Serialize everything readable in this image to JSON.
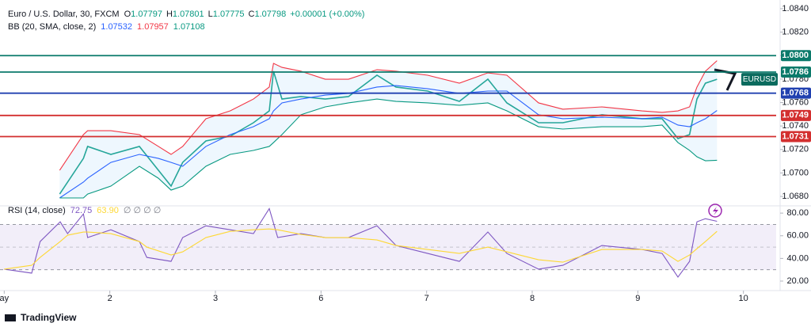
{
  "chart_data": [
    {
      "type": "line",
      "title": "Euro / U.S. Dollar, 30, FXCM",
      "ohlc": [
        {
          "label": "O",
          "value": 1.07797
        },
        {
          "label": "H",
          "value": 1.07801
        },
        {
          "label": "L",
          "value": 1.07775
        },
        {
          "label": "C",
          "value": 1.07798
        }
      ],
      "change": "+0.00001 (+0.00%)",
      "indicator": "BB (20, SMA, close, 2)",
      "indicator_values": [
        1.07532,
        1.07957,
        1.07108
      ],
      "tag": "EURUSD",
      "x": [
        0.525,
        0.75,
        0.79,
        1.01,
        1.28,
        1.46,
        1.58,
        1.69,
        1.91,
        2.14,
        2.36,
        2.51,
        2.55,
        2.63,
        2.81,
        3.04,
        3.26,
        3.53,
        3.71,
        4.01,
        4.31,
        4.58,
        4.76,
        5.06,
        5.29,
        5.66,
        6.04,
        6.23,
        6.38,
        6.49,
        6.56,
        6.64,
        6.75
      ],
      "series": [
        {
          "color": "#26a69a",
          "values": [
            1.0682,
            1.07124,
            1.07226,
            1.07158,
            1.07226,
            1.07023,
            1.06888,
            1.0709,
            1.07273,
            1.07313,
            1.07428,
            1.07529,
            1.07867,
            1.0763,
            1.07651,
            1.0763,
            1.07651,
            1.07833,
            1.07732,
            1.07698,
            1.0761,
            1.07799,
            1.07597,
            1.07428,
            1.07428,
            1.07496,
            1.07462,
            1.07462,
            1.07293,
            1.07327,
            1.0763,
            1.07765,
            1.07798
          ]
        },
        {
          "color": "#f23645",
          "values": [
            1.07023,
            1.07327,
            1.0736,
            1.0736,
            1.07327,
            1.07226,
            1.07158,
            1.07226,
            1.07462,
            1.07529,
            1.0763,
            1.07732,
            1.07934,
            1.079,
            1.07867,
            1.07799,
            1.07799,
            1.0788,
            1.07867,
            1.07833,
            1.07765,
            1.07853,
            1.07833,
            1.07597,
            1.07543,
            1.07563,
            1.07529,
            1.07516,
            1.07529,
            1.07563,
            1.07732,
            1.07867,
            1.07957
          ]
        },
        {
          "color": "#2962ff",
          "values": [
            1.06787,
            1.06922,
            1.06955,
            1.0709,
            1.07158,
            1.07124,
            1.0709,
            1.07057,
            1.07226,
            1.07327,
            1.07394,
            1.07462,
            1.07529,
            1.07597,
            1.0763,
            1.07664,
            1.07678,
            1.07732,
            1.07745,
            1.07718,
            1.07678,
            1.07698,
            1.07698,
            1.07496,
            1.07462,
            1.07475,
            1.07462,
            1.07475,
            1.07408,
            1.07394,
            1.07428,
            1.07462,
            1.07532
          ]
        },
        {
          "color": "#089981",
          "values": [
            1.06787,
            1.06787,
            1.0682,
            1.06888,
            1.07057,
            1.06955,
            1.06854,
            1.06888,
            1.07057,
            1.07158,
            1.07192,
            1.07226,
            1.07259,
            1.07327,
            1.07496,
            1.07563,
            1.07597,
            1.0763,
            1.0761,
            1.07597,
            1.07577,
            1.07597,
            1.07529,
            1.07394,
            1.07374,
            1.07394,
            1.07394,
            1.07408,
            1.07259,
            1.07192,
            1.07138,
            1.07104,
            1.07108
          ]
        }
      ],
      "band_color": "#2196f3",
      "levels": [
        {
          "value": 1.08,
          "label": "1.0800",
          "color": "#0b7a6b"
        },
        {
          "value": 1.0786,
          "label": "1.0786",
          "color": "#0b7a6b"
        },
        {
          "value": 1.0768,
          "label": "1.0768",
          "color": "#2040b0"
        },
        {
          "value": 1.0749,
          "label": "1.0749",
          "color": "#d32f2f"
        },
        {
          "value": 1.0731,
          "label": "1.0731",
          "color": "#d32f2f"
        }
      ],
      "xlim": [
        -0.04,
        7.31
      ],
      "xticks": [
        {
          "value": 0,
          "label": "ay"
        },
        {
          "value": 1,
          "label": "2"
        },
        {
          "value": 2,
          "label": "3"
        },
        {
          "value": 3,
          "label": "6"
        },
        {
          "value": 4,
          "label": "7"
        },
        {
          "value": 5,
          "label": "8"
        },
        {
          "value": 6,
          "label": "9"
        },
        {
          "value": 7,
          "label": "10"
        }
      ],
      "ylim": [
        1.06733,
        1.08474
      ],
      "yticks": [
        {
          "value": 1.084,
          "label": "1.0840"
        },
        {
          "value": 1.082,
          "label": "1.0820"
        },
        {
          "value": 1.08,
          "label": "1.0800"
        },
        {
          "value": 1.078,
          "label": "1.0780"
        },
        {
          "value": 1.076,
          "label": "1.0760"
        },
        {
          "value": 1.074,
          "label": "1.0740"
        },
        {
          "value": 1.072,
          "label": "1.0720"
        },
        {
          "value": 1.07,
          "label": "1.0700"
        },
        {
          "value": 1.068,
          "label": "1.0680"
        }
      ]
    },
    {
      "type": "line",
      "title": "RSI (14, close)",
      "legend_values": [
        72.75,
        63.9
      ],
      "legend_value_labels": [
        "72.75",
        "63.90"
      ],
      "legend_extra": "∅ ∅ ∅ ∅",
      "x": [
        0,
        0.26,
        0.34,
        0.53,
        0.6,
        0.75,
        0.79,
        1.01,
        1.28,
        1.35,
        1.58,
        1.69,
        1.91,
        2.14,
        2.36,
        2.51,
        2.59,
        2.81,
        3.04,
        3.26,
        3.53,
        3.71,
        4.01,
        4.31,
        4.58,
        4.76,
        5.06,
        5.29,
        5.66,
        6.04,
        6.23,
        6.38,
        6.49,
        6.56,
        6.64,
        6.75
      ],
      "series": [
        {
          "color": "#7e57c2",
          "values": [
            30.5,
            27,
            54.9,
            72.3,
            61.9,
            79.3,
            58.4,
            65.3,
            54.9,
            40.9,
            37.4,
            58.4,
            68.8,
            65.3,
            61.9,
            84,
            58.4,
            61.9,
            58.4,
            58.4,
            68.8,
            51.4,
            44.4,
            37.4,
            63.3,
            44.4,
            30.5,
            33.9,
            51.4,
            47.9,
            44.4,
            23.5,
            37.4,
            72.3,
            75.1,
            72.75
          ]
        },
        {
          "color": "#fdd835",
          "values": [
            30.5,
            33.9,
            40.9,
            54.9,
            60.5,
            63.3,
            63.3,
            61.9,
            54.9,
            50,
            43,
            45.8,
            58.4,
            63.9,
            65.3,
            66,
            65.3,
            61.2,
            58.4,
            58.4,
            56.3,
            51.4,
            47.9,
            44.4,
            50,
            45.8,
            38.8,
            36.7,
            47.9,
            47.9,
            46.5,
            37.4,
            43,
            48.6,
            54.9,
            63.9
          ]
        }
      ],
      "bands": {
        "upper": 70,
        "middle": 50,
        "lower": 30
      },
      "band_color": "#7e57c2",
      "ylim": [
        13,
        85
      ],
      "yticks": [
        {
          "value": 80,
          "label": "80.00"
        },
        {
          "value": 60,
          "label": "60.00"
        },
        {
          "value": 40,
          "label": "40.00"
        },
        {
          "value": 20,
          "label": "20.00"
        }
      ]
    }
  ],
  "footer": {
    "brand": "TradingView"
  }
}
